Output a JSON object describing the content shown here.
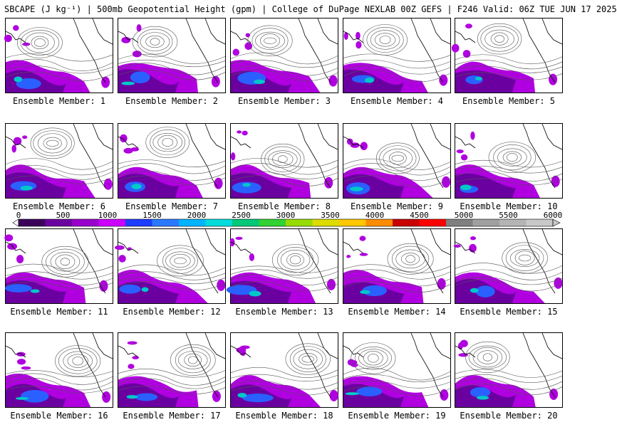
{
  "header": {
    "title": "SBCAPE (J kg⁻¹) | 500mb Geopotential Height (gpm) | College of DuPage NEXLAB 00Z GEFS | F246 Valid: 06Z TUE JUN 17 2025"
  },
  "panels": [
    {
      "label": "Ensemble Member: 1"
    },
    {
      "label": "Ensemble Member: 2"
    },
    {
      "label": "Ensemble Member: 3"
    },
    {
      "label": "Ensemble Member: 4"
    },
    {
      "label": "Ensemble Member: 5"
    },
    {
      "label": "Ensemble Member: 6"
    },
    {
      "label": "Ensemble Member: 7"
    },
    {
      "label": "Ensemble Member: 8"
    },
    {
      "label": "Ensemble Member: 9"
    },
    {
      "label": "Ensemble Member: 10"
    },
    {
      "label": "Ensemble Member: 11"
    },
    {
      "label": "Ensemble Member: 12"
    },
    {
      "label": "Ensemble Member: 13"
    },
    {
      "label": "Ensemble Member: 14"
    },
    {
      "label": "Ensemble Member: 15"
    },
    {
      "label": "Ensemble Member: 16"
    },
    {
      "label": "Ensemble Member: 17"
    },
    {
      "label": "Ensemble Member: 18"
    },
    {
      "label": "Ensemble Member: 19"
    },
    {
      "label": "Ensemble Member: 20"
    }
  ],
  "colorbar": {
    "ticks": [
      "0",
      "500",
      "1000",
      "1500",
      "2000",
      "2500",
      "3000",
      "3500",
      "4000",
      "4500",
      "5000",
      "5500",
      "6000"
    ],
    "range": [
      0,
      6000
    ],
    "colors": [
      "#3a005a",
      "#6a00a0",
      "#9900cc",
      "#cc00ff",
      "#1e3cff",
      "#2a78ff",
      "#00b4ff",
      "#00dcdc",
      "#00c878",
      "#32d232",
      "#96dc00",
      "#dcdc00",
      "#ffc800",
      "#ff8c00",
      "#c80000",
      "#ff0000",
      "#808080",
      "#a0a0a0",
      "#b4b4b4",
      "#c8c8c8"
    ]
  }
}
